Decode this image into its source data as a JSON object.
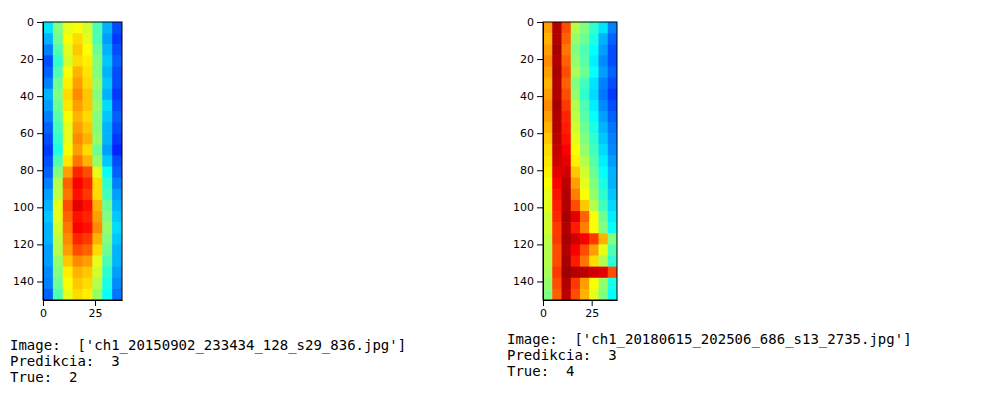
{
  "chart_data": [
    {
      "type": "heatmap",
      "xlim": [
        0,
        38
      ],
      "ylim": [
        0,
        150
      ],
      "xticks": [
        0,
        25
      ],
      "yticks": [
        0,
        20,
        40,
        60,
        80,
        100,
        120,
        140
      ],
      "color_range": [
        0,
        1
      ],
      "annotations": [
        "Image:  ['ch1_20150902_233434_128_s29_836.jpg']",
        "Predikcia:  3",
        "True:  2"
      ],
      "cells": [
        [
          0.35,
          0.5,
          0.6,
          0.62,
          0.58,
          0.45,
          0.3,
          0.2
        ],
        [
          0.3,
          0.48,
          0.62,
          0.66,
          0.6,
          0.45,
          0.28,
          0.18
        ],
        [
          0.25,
          0.45,
          0.6,
          0.68,
          0.62,
          0.48,
          0.3,
          0.2
        ],
        [
          0.2,
          0.42,
          0.58,
          0.66,
          0.64,
          0.5,
          0.32,
          0.22
        ],
        [
          0.22,
          0.45,
          0.62,
          0.7,
          0.65,
          0.5,
          0.3,
          0.2
        ],
        [
          0.25,
          0.48,
          0.64,
          0.72,
          0.66,
          0.52,
          0.32,
          0.2
        ],
        [
          0.3,
          0.5,
          0.66,
          0.74,
          0.68,
          0.5,
          0.3,
          0.18
        ],
        [
          0.28,
          0.48,
          0.65,
          0.72,
          0.68,
          0.52,
          0.34,
          0.2
        ],
        [
          0.25,
          0.46,
          0.62,
          0.7,
          0.66,
          0.5,
          0.32,
          0.22
        ],
        [
          0.22,
          0.44,
          0.6,
          0.72,
          0.68,
          0.5,
          0.3,
          0.2
        ],
        [
          0.2,
          0.42,
          0.6,
          0.74,
          0.7,
          0.52,
          0.3,
          0.18
        ],
        [
          0.18,
          0.4,
          0.62,
          0.72,
          0.66,
          0.48,
          0.28,
          0.16
        ],
        [
          0.2,
          0.45,
          0.65,
          0.76,
          0.7,
          0.52,
          0.32,
          0.2
        ],
        [
          0.22,
          0.5,
          0.72,
          0.84,
          0.8,
          0.6,
          0.38,
          0.22
        ],
        [
          0.25,
          0.55,
          0.78,
          0.88,
          0.84,
          0.66,
          0.42,
          0.25
        ],
        [
          0.28,
          0.56,
          0.76,
          0.86,
          0.82,
          0.66,
          0.44,
          0.28
        ],
        [
          0.3,
          0.6,
          0.8,
          0.9,
          0.86,
          0.7,
          0.48,
          0.3
        ],
        [
          0.32,
          0.6,
          0.78,
          0.86,
          0.84,
          0.72,
          0.5,
          0.32
        ],
        [
          0.3,
          0.58,
          0.76,
          0.88,
          0.86,
          0.74,
          0.52,
          0.34
        ],
        [
          0.3,
          0.56,
          0.74,
          0.84,
          0.82,
          0.7,
          0.5,
          0.32
        ],
        [
          0.28,
          0.55,
          0.72,
          0.8,
          0.78,
          0.66,
          0.48,
          0.3
        ],
        [
          0.28,
          0.52,
          0.68,
          0.74,
          0.72,
          0.6,
          0.45,
          0.3
        ],
        [
          0.26,
          0.5,
          0.64,
          0.7,
          0.68,
          0.58,
          0.42,
          0.28
        ],
        [
          0.25,
          0.48,
          0.62,
          0.68,
          0.66,
          0.55,
          0.4,
          0.26
        ],
        [
          0.22,
          0.45,
          0.6,
          0.66,
          0.64,
          0.52,
          0.38,
          0.24
        ]
      ]
    },
    {
      "type": "heatmap",
      "xlim": [
        0,
        38
      ],
      "ylim": [
        0,
        150
      ],
      "xticks": [
        0,
        25
      ],
      "yticks": [
        0,
        20,
        40,
        60,
        80,
        100,
        120,
        140
      ],
      "color_range": [
        0,
        1
      ],
      "annotations": [
        "Image:  ['ch1_20180615_202506_686_s13_2735.jpg']",
        "Predikcia:  3",
        "True:  4"
      ],
      "cells": [
        [
          0.72,
          0.95,
          0.8,
          0.55,
          0.5,
          0.42,
          0.35,
          0.25
        ],
        [
          0.7,
          0.95,
          0.78,
          0.52,
          0.48,
          0.4,
          0.3,
          0.22
        ],
        [
          0.72,
          0.96,
          0.76,
          0.5,
          0.45,
          0.38,
          0.28,
          0.2
        ],
        [
          0.74,
          0.95,
          0.78,
          0.52,
          0.46,
          0.36,
          0.26,
          0.2
        ],
        [
          0.72,
          0.96,
          0.8,
          0.54,
          0.48,
          0.38,
          0.28,
          0.22
        ],
        [
          0.7,
          0.95,
          0.78,
          0.5,
          0.44,
          0.35,
          0.25,
          0.2
        ],
        [
          0.72,
          0.95,
          0.8,
          0.52,
          0.42,
          0.34,
          0.24,
          0.18
        ],
        [
          0.74,
          0.96,
          0.82,
          0.55,
          0.45,
          0.36,
          0.26,
          0.2
        ],
        [
          0.72,
          0.95,
          0.84,
          0.56,
          0.46,
          0.38,
          0.28,
          0.22
        ],
        [
          0.7,
          0.95,
          0.85,
          0.58,
          0.48,
          0.4,
          0.3,
          0.24
        ],
        [
          0.68,
          0.94,
          0.86,
          0.6,
          0.5,
          0.42,
          0.32,
          0.25
        ],
        [
          0.66,
          0.93,
          0.88,
          0.62,
          0.52,
          0.44,
          0.34,
          0.26
        ],
        [
          0.65,
          0.92,
          0.9,
          0.64,
          0.55,
          0.46,
          0.36,
          0.28
        ],
        [
          0.64,
          0.9,
          0.92,
          0.68,
          0.58,
          0.48,
          0.38,
          0.3
        ],
        [
          0.62,
          0.88,
          0.94,
          0.72,
          0.6,
          0.5,
          0.4,
          0.3
        ],
        [
          0.6,
          0.86,
          0.95,
          0.75,
          0.62,
          0.52,
          0.42,
          0.32
        ],
        [
          0.6,
          0.85,
          0.95,
          0.8,
          0.68,
          0.55,
          0.44,
          0.34
        ],
        [
          0.58,
          0.84,
          0.96,
          0.9,
          0.78,
          0.62,
          0.48,
          0.36
        ],
        [
          0.58,
          0.82,
          0.95,
          0.85,
          0.75,
          0.62,
          0.5,
          0.38
        ],
        [
          0.56,
          0.82,
          0.96,
          0.92,
          0.88,
          0.82,
          0.7,
          0.5
        ],
        [
          0.55,
          0.8,
          0.95,
          0.88,
          0.8,
          0.72,
          0.6,
          0.45
        ],
        [
          0.55,
          0.8,
          0.96,
          0.85,
          0.76,
          0.66,
          0.55,
          0.42
        ],
        [
          0.54,
          0.82,
          0.97,
          0.95,
          0.94,
          0.92,
          0.9,
          0.8
        ],
        [
          0.52,
          0.8,
          0.95,
          0.82,
          0.72,
          0.62,
          0.52,
          0.4
        ],
        [
          0.5,
          0.78,
          0.94,
          0.8,
          0.7,
          0.6,
          0.5,
          0.38
        ]
      ]
    }
  ]
}
